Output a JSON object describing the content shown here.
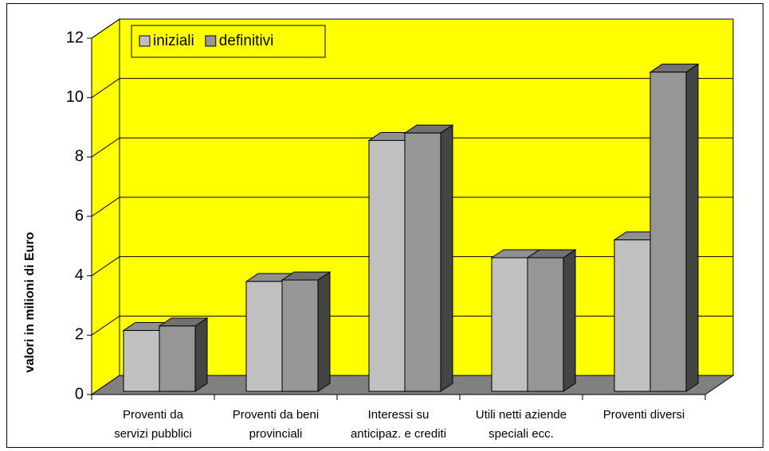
{
  "chart_data": {
    "type": "bar3d",
    "ylabel": "valori in milioni di Euro",
    "categories": [
      [
        "Proventi da",
        "servizi pubblici"
      ],
      [
        "Proventi da beni",
        "provinciali"
      ],
      [
        "Interessi su",
        "anticipaz. e crediti"
      ],
      [
        "Utili netti aziende",
        "speciali ecc."
      ],
      [
        "Proventi diversi"
      ]
    ],
    "series": [
      {
        "name": "iniziali",
        "color": "#c0c0c0",
        "values": [
          2.05,
          3.7,
          8.45,
          4.5,
          5.1
        ]
      },
      {
        "name": "definitivi",
        "color": "#969696",
        "values": [
          2.2,
          3.75,
          8.7,
          4.5,
          10.75
        ]
      }
    ],
    "ylim": [
      0,
      12
    ],
    "yticks": [
      0,
      2,
      4,
      6,
      8,
      10,
      12
    ],
    "grid": true,
    "wall_color": "#ffff00",
    "floor_color": "#808080",
    "legend": "top-left"
  }
}
